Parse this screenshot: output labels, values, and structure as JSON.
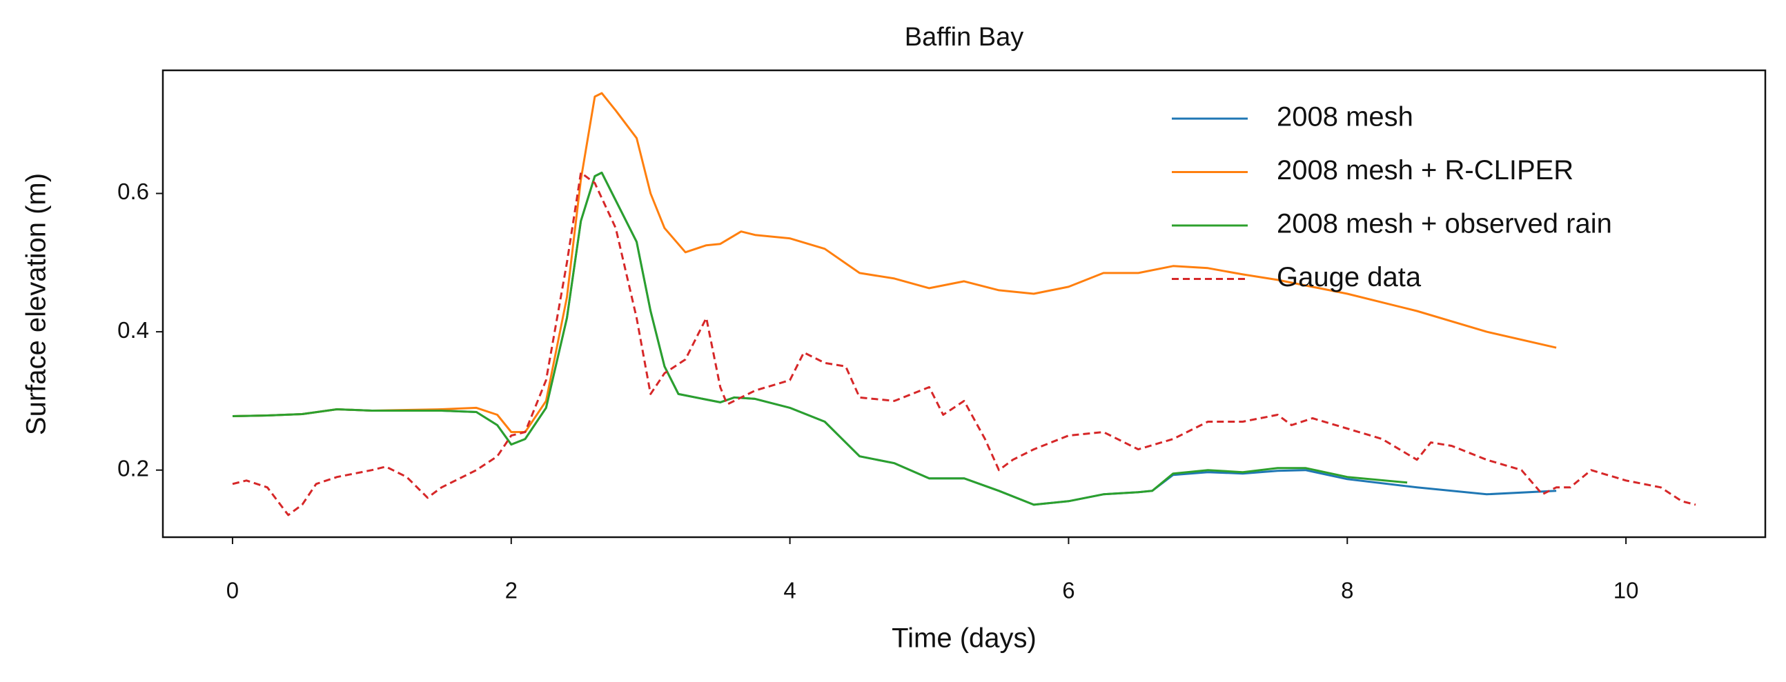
{
  "chart_data": {
    "type": "line",
    "title": "Baffin Bay",
    "xlabel": "Time (days)",
    "ylabel": "Surface elevation (m)",
    "xlim": [
      -0.5,
      11.0
    ],
    "ylim": [
      0.103,
      0.778
    ],
    "xticks": [
      0,
      2,
      4,
      6,
      8,
      10
    ],
    "yticks": [
      {
        "value": 0.2,
        "label": "0.2"
      },
      {
        "value": 0.4,
        "label": "0.4"
      },
      {
        "value": 0.6,
        "label": "0.6"
      }
    ],
    "grid": false,
    "legend": "upper right",
    "series": [
      {
        "name": "2008 mesh",
        "color": "#1f77b4",
        "x": [
          0,
          0.25,
          0.5,
          0.75,
          1,
          1.25,
          1.5,
          1.75,
          1.9,
          2.0,
          2.1,
          2.25,
          2.4,
          2.5,
          2.6,
          2.65,
          2.75,
          2.9,
          3.0,
          3.1,
          3.2,
          3.5,
          3.6,
          3.75,
          4,
          4.25,
          4.5,
          4.75,
          5,
          5.25,
          5.5,
          5.75,
          6,
          6.25,
          6.5,
          6.6,
          6.75,
          7,
          7.25,
          7.5,
          7.7,
          8,
          8.5,
          9,
          9.5
        ],
        "values": [
          0.278,
          0.279,
          0.281,
          0.288,
          0.286,
          0.286,
          0.286,
          0.284,
          0.265,
          0.237,
          0.245,
          0.29,
          0.42,
          0.56,
          0.625,
          0.63,
          0.59,
          0.53,
          0.43,
          0.35,
          0.31,
          0.298,
          0.305,
          0.303,
          0.29,
          0.27,
          0.22,
          0.21,
          0.188,
          0.188,
          0.17,
          0.15,
          0.155,
          0.165,
          0.168,
          0.17,
          0.193,
          0.197,
          0.195,
          0.199,
          0.2,
          0.187,
          0.175,
          0.165,
          0.17
        ]
      },
      {
        "name": "2008 mesh + R-CLIPER",
        "color": "#ff7f0e",
        "x": [
          0,
          0.25,
          0.5,
          0.75,
          1,
          1.25,
          1.5,
          1.75,
          1.9,
          2.0,
          2.1,
          2.25,
          2.4,
          2.5,
          2.6,
          2.65,
          2.75,
          2.9,
          3.0,
          3.1,
          3.25,
          3.4,
          3.5,
          3.65,
          3.75,
          4,
          4.25,
          4.5,
          4.75,
          5,
          5.25,
          5.5,
          5.75,
          6,
          6.25,
          6.5,
          6.75,
          7,
          7.25,
          7.5,
          8,
          8.5,
          9,
          9.5
        ],
        "values": [
          0.278,
          0.279,
          0.281,
          0.288,
          0.286,
          0.287,
          0.288,
          0.29,
          0.28,
          0.255,
          0.255,
          0.3,
          0.45,
          0.62,
          0.74,
          0.745,
          0.72,
          0.68,
          0.6,
          0.55,
          0.515,
          0.525,
          0.527,
          0.545,
          0.54,
          0.535,
          0.52,
          0.485,
          0.477,
          0.463,
          0.473,
          0.46,
          0.455,
          0.465,
          0.485,
          0.485,
          0.495,
          0.492,
          0.483,
          0.475,
          0.455,
          0.43,
          0.4,
          0.377
        ]
      },
      {
        "name": "2008 mesh + observed rain",
        "color": "#2ca02c",
        "x": [
          0,
          0.25,
          0.5,
          0.75,
          1,
          1.25,
          1.5,
          1.75,
          1.9,
          2.0,
          2.1,
          2.25,
          2.4,
          2.5,
          2.6,
          2.65,
          2.75,
          2.9,
          3.0,
          3.1,
          3.2,
          3.5,
          3.6,
          3.75,
          4,
          4.25,
          4.5,
          4.75,
          5,
          5.25,
          5.5,
          5.75,
          6,
          6.25,
          6.5,
          6.6,
          6.75,
          7,
          7.25,
          7.5,
          7.7,
          8,
          8.43
        ],
        "values": [
          0.278,
          0.279,
          0.281,
          0.288,
          0.286,
          0.286,
          0.286,
          0.284,
          0.265,
          0.237,
          0.245,
          0.29,
          0.42,
          0.56,
          0.625,
          0.63,
          0.59,
          0.53,
          0.43,
          0.35,
          0.31,
          0.298,
          0.305,
          0.303,
          0.29,
          0.27,
          0.22,
          0.21,
          0.188,
          0.188,
          0.17,
          0.15,
          0.155,
          0.165,
          0.168,
          0.17,
          0.195,
          0.2,
          0.197,
          0.203,
          0.203,
          0.19,
          0.182
        ]
      },
      {
        "name": "Gauge data",
        "color": "#d62728",
        "linestyle": "dashed",
        "x": [
          0,
          0.1,
          0.25,
          0.4,
          0.5,
          0.6,
          0.75,
          1,
          1.1,
          1.25,
          1.4,
          1.5,
          1.75,
          1.9,
          2.0,
          2.1,
          2.25,
          2.4,
          2.5,
          2.6,
          2.75,
          2.9,
          3.0,
          3.1,
          3.25,
          3.35,
          3.4,
          3.5,
          3.55,
          3.75,
          4,
          4.1,
          4.25,
          4.4,
          4.5,
          4.75,
          5,
          5.1,
          5.25,
          5.4,
          5.5,
          5.6,
          5.75,
          6,
          6.25,
          6.5,
          6.75,
          7,
          7.25,
          7.5,
          7.6,
          7.75,
          8,
          8.25,
          8.5,
          8.6,
          8.75,
          9,
          9.25,
          9.4,
          9.5,
          9.6,
          9.75,
          10,
          10.25,
          10.4,
          10.5
        ],
        "values": [
          0.18,
          0.185,
          0.175,
          0.135,
          0.15,
          0.18,
          0.19,
          0.2,
          0.205,
          0.19,
          0.16,
          0.175,
          0.2,
          0.22,
          0.25,
          0.255,
          0.33,
          0.5,
          0.63,
          0.615,
          0.55,
          0.42,
          0.31,
          0.34,
          0.36,
          0.4,
          0.42,
          0.32,
          0.295,
          0.315,
          0.33,
          0.37,
          0.355,
          0.35,
          0.305,
          0.3,
          0.32,
          0.28,
          0.3,
          0.245,
          0.2,
          0.215,
          0.23,
          0.25,
          0.255,
          0.23,
          0.245,
          0.27,
          0.27,
          0.28,
          0.265,
          0.275,
          0.26,
          0.245,
          0.215,
          0.24,
          0.235,
          0.215,
          0.2,
          0.165,
          0.175,
          0.175,
          0.2,
          0.185,
          0.175,
          0.155,
          0.15
        ]
      }
    ]
  }
}
